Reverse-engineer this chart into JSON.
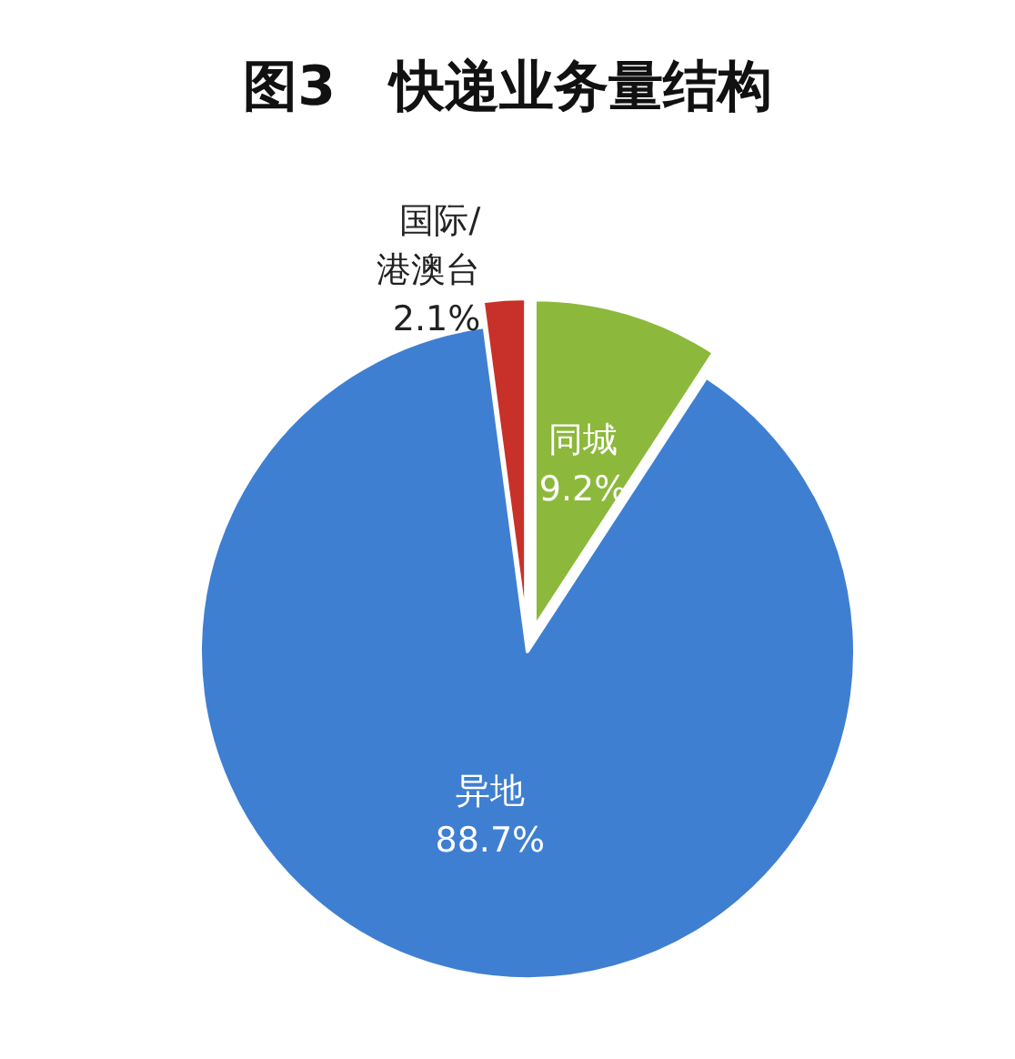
{
  "chart_data": {
    "type": "pie",
    "title": "图3　快递业务量结构",
    "categories": [
      "同城",
      "异地",
      "国际/港澳台"
    ],
    "values": [
      9.2,
      88.7,
      2.1
    ],
    "value_labels": [
      "9.2%",
      "88.7%",
      "2.1%"
    ],
    "colors": [
      "#8cb83c",
      "#3f7fd2",
      "#c8302a"
    ],
    "legend": false
  }
}
